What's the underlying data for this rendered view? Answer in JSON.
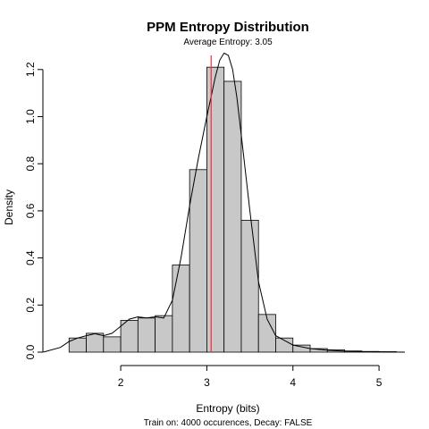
{
  "chart_data": {
    "type": "bar",
    "title": "PPM Entropy Distribution",
    "subtitle": "Average Entropy: 3.05",
    "xlabel": "Entropy (bits)",
    "ylabel": "Density",
    "caption": "Train on: 4000 occurences, Decay: FALSE",
    "xlim": [
      1.2,
      5.3
    ],
    "ylim": [
      0,
      1.26
    ],
    "x_ticks": [
      "2",
      "3",
      "4",
      "5"
    ],
    "y_ticks": [
      "0.0",
      "0.2",
      "0.4",
      "0.6",
      "0.8",
      "1.0",
      "1.2"
    ],
    "grid": false,
    "bin_edges": [
      1.4,
      1.6,
      1.8,
      2.0,
      2.2,
      2.4,
      2.6,
      2.8,
      3.0,
      3.2,
      3.4,
      3.6,
      3.8,
      4.0,
      4.2,
      4.4,
      4.6,
      4.8,
      5.0,
      5.2
    ],
    "values": [
      0.06,
      0.08,
      0.065,
      0.135,
      0.145,
      0.155,
      0.37,
      0.775,
      1.21,
      1.15,
      0.56,
      0.16,
      0.06,
      0.03,
      0.015,
      0.01,
      0.005,
      0.003,
      0.002
    ],
    "density_curve": {
      "x": [
        1.1,
        1.3,
        1.4,
        1.5,
        1.6,
        1.7,
        1.8,
        1.9,
        2.0,
        2.1,
        2.2,
        2.3,
        2.4,
        2.5,
        2.6,
        2.7,
        2.8,
        2.9,
        3.0,
        3.1,
        3.15,
        3.2,
        3.25,
        3.3,
        3.35,
        3.4,
        3.5,
        3.6,
        3.7,
        3.8,
        3.9,
        4.0,
        4.2,
        4.4,
        4.6,
        4.8,
        5.0,
        5.3
      ],
      "y": [
        0.0,
        0.02,
        0.045,
        0.06,
        0.07,
        0.078,
        0.07,
        0.08,
        0.11,
        0.14,
        0.15,
        0.145,
        0.15,
        0.145,
        0.22,
        0.4,
        0.62,
        0.82,
        1.0,
        1.17,
        1.24,
        1.27,
        1.26,
        1.2,
        1.08,
        0.92,
        0.6,
        0.3,
        0.14,
        0.07,
        0.05,
        0.03,
        0.015,
        0.008,
        0.004,
        0.002,
        0.001,
        0.0
      ]
    },
    "mean_line": {
      "x": 3.05,
      "color": "#ff2a2a"
    },
    "bar_color": "#c8c8c8"
  }
}
